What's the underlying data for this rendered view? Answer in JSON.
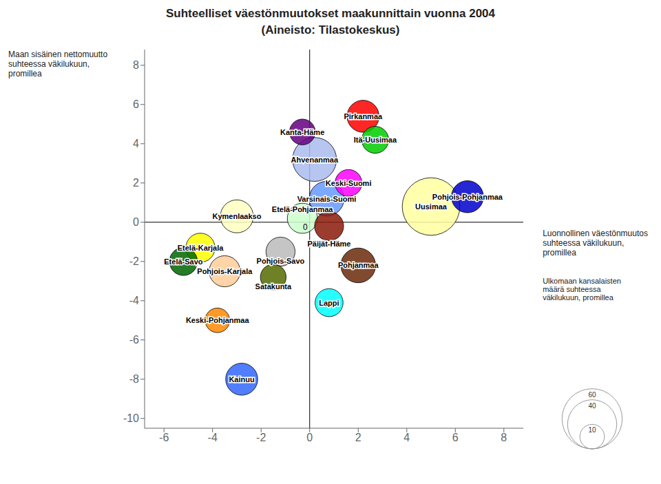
{
  "chart_data": {
    "type": "bubble",
    "title": "Suhteelliset väestönmuutokset maakunnittain vuonna 2004",
    "subtitle": "(Aineisto: Tilastokeskus)",
    "x_label": "Luonnollinen väestönmuutos\nsuhteessa väkilukuun,\npromillea",
    "y_label": "Maan sisäinen nettomuutto\nsuhteessa väkilukuun,\npromillea",
    "size_label": "Ulkomaan kansalaisten\nmäärä suhteessa\nväkilukuun, promillea",
    "categories": [
      "Uusimaa",
      "Ahvenanmaa",
      "Varsinais-Suomi",
      "Pohjanmaa",
      "Kymenlaakso",
      "Pirkanmaa",
      "Pohjois-Pohjanmaa",
      "Kainuu",
      "Pohjois-Karjala",
      "Etelä-Pohjanmaa",
      "Päijät-Häme",
      "Etelä-Karjala",
      "Pohjois-Savo",
      "Etelä-Savo",
      "Lappi",
      "Itä-Uusimaa",
      "Keski-Suomi",
      "Kanta-Häme",
      "Satakunta",
      "Keski-Pohjanmaa"
    ],
    "x": [
      5.0,
      0.2,
      0.7,
      2.0,
      -3.0,
      2.2,
      6.5,
      -2.8,
      -3.5,
      -0.3,
      0.8,
      -4.5,
      -1.2,
      -5.2,
      0.8,
      2.7,
      1.6,
      -0.3,
      -1.5,
      -3.8
    ],
    "values": [
      0.8,
      3.2,
      1.2,
      -2.2,
      0.3,
      5.4,
      1.3,
      -8.0,
      -2.5,
      0.2,
      -0.2,
      -1.3,
      -1.5,
      -2.0,
      -4.1,
      4.2,
      2.0,
      4.6,
      -2.8,
      -5.0
    ],
    "sizes": [
      55,
      32,
      20,
      20,
      18,
      17,
      17,
      17,
      16,
      15,
      14,
      14,
      14,
      13,
      13,
      12,
      12,
      11,
      11,
      10
    ],
    "colors": [
      "#FFFFA0",
      "#AABBEE",
      "#6699FF",
      "#6B2A0A",
      "#FFFFC0",
      "#FF0000",
      "#0000CC",
      "#3366FF",
      "#FFCC99",
      "#CCFFCC",
      "#8B1A0A",
      "#FFFF00",
      "#BBBBBB",
      "#006600",
      "#00FFFF",
      "#00CC00",
      "#FF00FF",
      "#660080",
      "#556B00",
      "#FF8800"
    ],
    "size_ref_values": [
      10,
      40,
      60
    ],
    "annotations": [
      {
        "text": "0",
        "x": 0,
        "y": 0
      }
    ],
    "xlim": [
      -6.8,
      8.8
    ],
    "ylim": [
      -10.5,
      8.8
    ],
    "xticks": [
      -6,
      -4,
      -2,
      0,
      2,
      4,
      6,
      8
    ],
    "yticks": [
      -10,
      -8,
      -6,
      -4,
      -2,
      0,
      2,
      4,
      6,
      8
    ],
    "grid": false
  }
}
